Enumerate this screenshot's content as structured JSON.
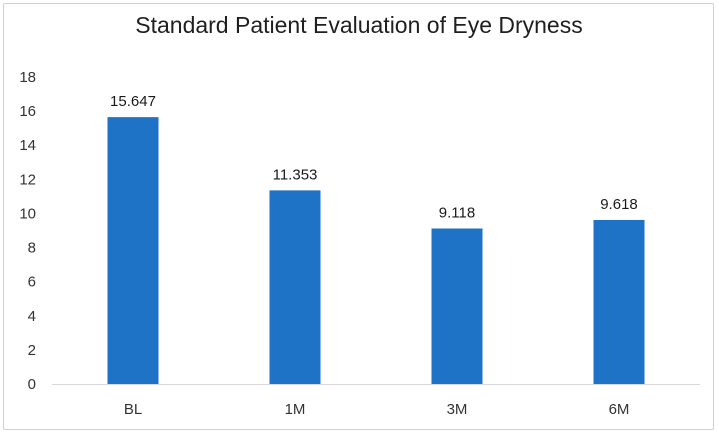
{
  "chart_data": {
    "type": "bar",
    "title": "Standard Patient Evaluation of Eye Dryness",
    "xlabel": "",
    "ylabel": "",
    "categories": [
      "BL",
      "1M",
      "3M",
      "6M"
    ],
    "values": [
      15.647,
      11.353,
      9.118,
      9.618
    ],
    "data_labels": [
      "15.647",
      "11.353",
      "9.118",
      "9.618"
    ],
    "ylim": [
      0,
      18
    ],
    "yticks": [
      0,
      2,
      4,
      6,
      8,
      10,
      12,
      14,
      16,
      18
    ],
    "grid": false,
    "legend": "none",
    "bar_color": "#1F73C6"
  }
}
